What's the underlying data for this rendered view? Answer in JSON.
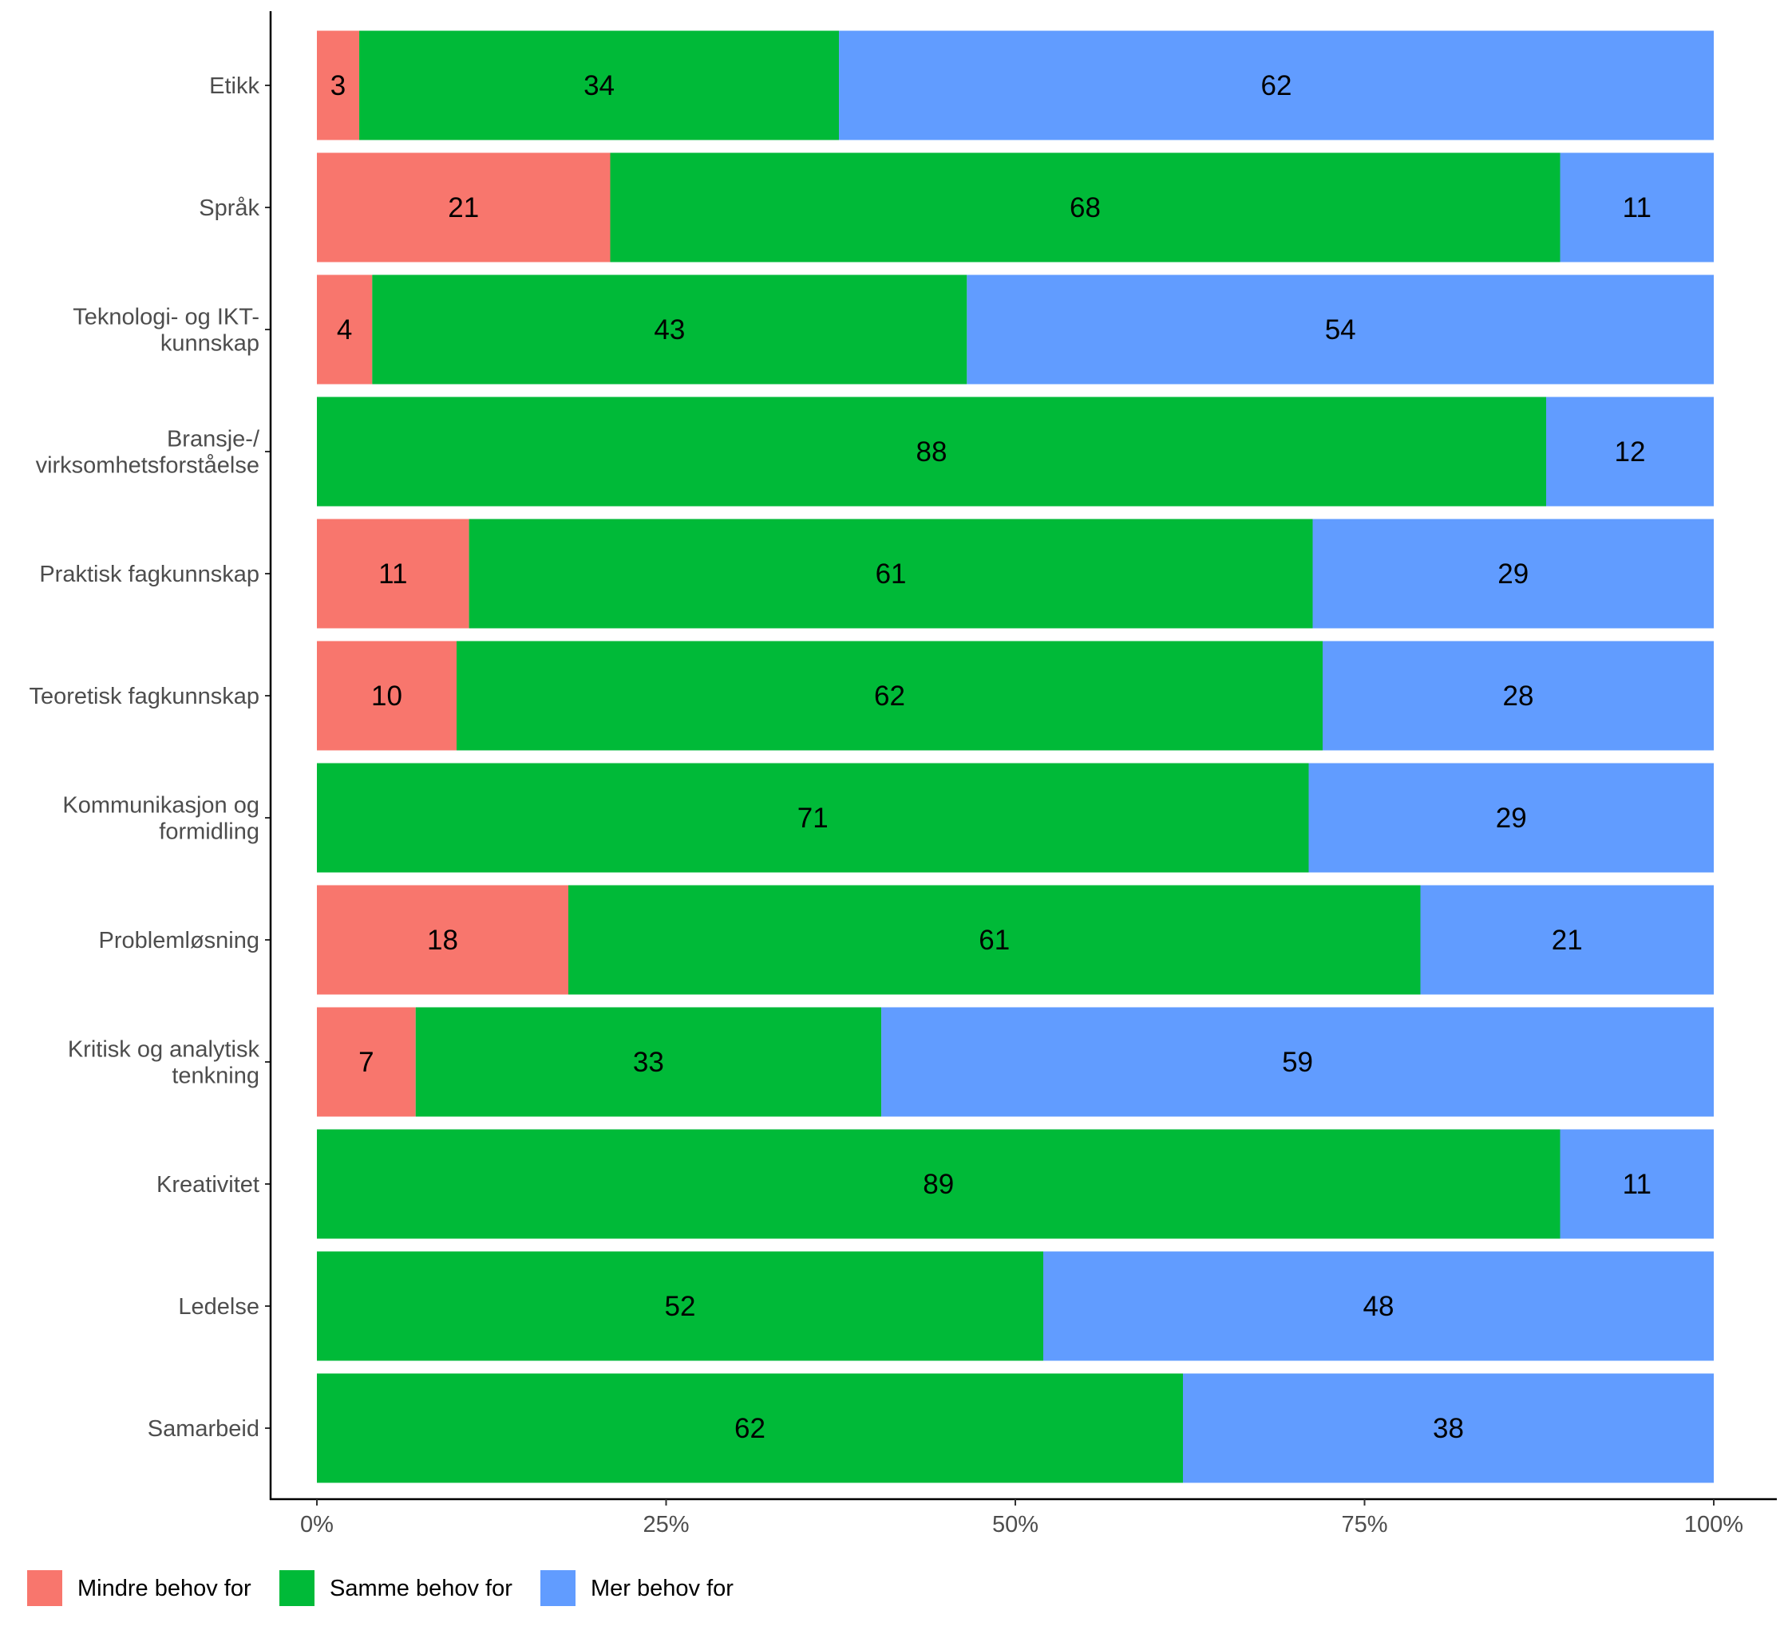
{
  "chart_data": {
    "type": "bar",
    "orientation": "horizontal",
    "stacked": "percent",
    "categories": [
      [
        "Etikk"
      ],
      [
        "Språk"
      ],
      [
        "Teknologi- og IKT-",
        "kunnskap"
      ],
      [
        "Bransje-/",
        "virksomhetsforståelse"
      ],
      [
        "Praktisk fagkunnskap"
      ],
      [
        "Teoretisk fagkunnskap"
      ],
      [
        "Kommunikasjon og",
        "formidling"
      ],
      [
        "Problemløsning"
      ],
      [
        "Kritisk og analytisk",
        "tenkning"
      ],
      [
        "Kreativitet"
      ],
      [
        "Ledelse"
      ],
      [
        "Samarbeid"
      ]
    ],
    "series": [
      {
        "name": "Mindre behov for",
        "color": "#F8766D",
        "values": [
          3,
          21,
          4,
          0,
          11,
          10,
          0,
          18,
          7,
          0,
          0,
          0
        ],
        "labels": [
          "3",
          "21",
          "4",
          "",
          "11",
          "10",
          "",
          "18",
          "7",
          "",
          "",
          ""
        ]
      },
      {
        "name": "Samme behov for",
        "color": "#00BA38",
        "values": [
          34,
          68,
          43,
          88,
          61,
          62,
          71,
          61,
          33,
          89,
          52,
          62
        ],
        "labels": [
          "34",
          "68",
          "43",
          "88",
          "61",
          "62",
          "71",
          "61",
          "33",
          "89",
          "52",
          "62"
        ]
      },
      {
        "name": "Mer behov for",
        "color": "#619CFF",
        "values": [
          62,
          11,
          54,
          12,
          29,
          28,
          29,
          21,
          59,
          11,
          48,
          38
        ],
        "labels": [
          "62",
          "11",
          "54",
          "12",
          "29",
          "28",
          "29",
          "21",
          "59",
          "11",
          "48",
          "38"
        ]
      }
    ],
    "x_ticks": [
      "0%",
      "25%",
      "50%",
      "75%",
      "100%"
    ],
    "xlim": [
      0,
      100
    ],
    "title": "",
    "xlabel": "",
    "ylabel": "",
    "grid": false,
    "legend_position": "bottom-left"
  }
}
